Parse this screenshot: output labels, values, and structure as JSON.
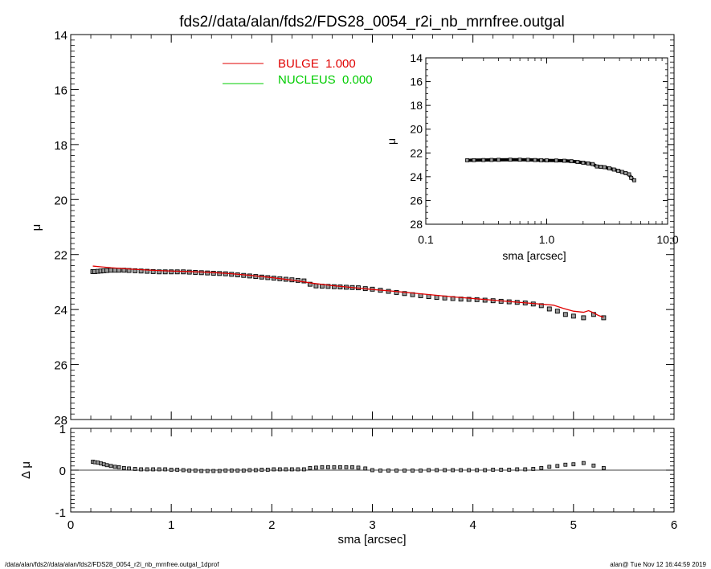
{
  "colors": {
    "bulge": "#e00000",
    "nucleus": "#00cc00",
    "data": "#000000",
    "data_fill": "#9a9a9a"
  },
  "footer": {
    "left": "/data/alan/fds2//data/alan/fds2/FDS28_0054_r2i_nb_mrnfree.outgal_1dprof",
    "right": "alan@  Tue Nov 12 16:44:59 2019"
  },
  "chart_data": [
    {
      "id": "main",
      "type": "scatter",
      "title": "fds2//data/alan/fds2/FDS28_0054_r2i_nb_mrnfree.outgal",
      "xlabel": "",
      "ylabel": "μ",
      "xlim": [
        0,
        6
      ],
      "ylim": [
        28,
        14
      ],
      "y_inverted": true,
      "yticks": [
        "14",
        "16",
        "18",
        "20",
        "22",
        "24",
        "26",
        "28"
      ],
      "legend": [
        {
          "name": "BULGE  1.000",
          "color": "#e00000"
        },
        {
          "name": "NUCLEUS  0.000",
          "color": "#00cc00"
        }
      ],
      "series": [
        {
          "name": "data",
          "marker": "square",
          "x": [
            0.22,
            0.24,
            0.27,
            0.3,
            0.33,
            0.36,
            0.4,
            0.44,
            0.48,
            0.53,
            0.58,
            0.64,
            0.7,
            0.76,
            0.82,
            0.88,
            0.94,
            1.0,
            1.06,
            1.12,
            1.18,
            1.24,
            1.3,
            1.36,
            1.42,
            1.48,
            1.54,
            1.6,
            1.66,
            1.72,
            1.78,
            1.84,
            1.9,
            1.96,
            2.02,
            2.08,
            2.14,
            2.2,
            2.26,
            2.32,
            2.38,
            2.44,
            2.5,
            2.56,
            2.62,
            2.68,
            2.74,
            2.8,
            2.86,
            2.93,
            3.0,
            3.08,
            3.16,
            3.24,
            3.32,
            3.4,
            3.48,
            3.56,
            3.64,
            3.72,
            3.8,
            3.88,
            3.96,
            4.04,
            4.12,
            4.2,
            4.28,
            4.36,
            4.44,
            4.52,
            4.6,
            4.68,
            4.76,
            4.84,
            4.92,
            5.0,
            5.1,
            5.2,
            5.3
          ],
          "y": [
            22.62,
            22.62,
            22.61,
            22.6,
            22.59,
            22.58,
            22.57,
            22.57,
            22.57,
            22.57,
            22.58,
            22.59,
            22.6,
            22.61,
            22.62,
            22.63,
            22.63,
            22.63,
            22.63,
            22.63,
            22.64,
            22.65,
            22.66,
            22.67,
            22.68,
            22.69,
            22.7,
            22.72,
            22.74,
            22.76,
            22.78,
            22.8,
            22.82,
            22.84,
            22.86,
            22.88,
            22.9,
            22.92,
            22.94,
            22.96,
            23.08,
            23.14,
            23.15,
            23.16,
            23.17,
            23.18,
            23.19,
            23.2,
            23.21,
            23.24,
            23.26,
            23.3,
            23.34,
            23.38,
            23.42,
            23.46,
            23.5,
            23.53,
            23.56,
            23.58,
            23.6,
            23.62,
            23.63,
            23.64,
            23.66,
            23.68,
            23.7,
            23.72,
            23.74,
            23.76,
            23.8,
            23.86,
            23.98,
            24.06,
            24.18,
            24.24,
            24.3,
            24.18,
            24.3
          ]
        },
        {
          "name": "BULGE  1.000",
          "marker": "line",
          "x": [
            0.22,
            0.4,
            0.6,
            0.8,
            1.0,
            1.2,
            1.4,
            1.6,
            1.8,
            2.0,
            2.2,
            2.4,
            2.6,
            2.8,
            3.0,
            3.2,
            3.4,
            3.6,
            3.8,
            4.0,
            4.2,
            4.4,
            4.6,
            4.8,
            4.9,
            5.0,
            5.1,
            5.15,
            5.2,
            5.25,
            5.3
          ],
          "y": [
            22.42,
            22.48,
            22.53,
            22.57,
            22.6,
            22.62,
            22.65,
            22.7,
            22.76,
            22.84,
            22.93,
            23.04,
            23.13,
            23.2,
            23.27,
            23.33,
            23.4,
            23.47,
            23.54,
            23.6,
            23.66,
            23.72,
            23.78,
            23.84,
            23.96,
            24.06,
            24.1,
            24.04,
            24.12,
            24.22,
            24.28
          ]
        }
      ]
    },
    {
      "id": "inset",
      "type": "scatter",
      "xlabel": "sma [arcsec]",
      "ylabel": "μ",
      "xscale": "log",
      "xlim": [
        0.1,
        10
      ],
      "ylim": [
        28,
        14
      ],
      "y_inverted": true,
      "xticks": [
        "0.1",
        "1.0",
        "10.0"
      ],
      "yticks": [
        "14",
        "16",
        "18",
        "20",
        "22",
        "24",
        "26",
        "28"
      ],
      "series": [
        {
          "name": "data",
          "marker": "square",
          "x": [
            0.22,
            0.25,
            0.3,
            0.35,
            0.4,
            0.5,
            0.6,
            0.7,
            0.8,
            0.9,
            1.0,
            1.2,
            1.4,
            1.6,
            1.8,
            2.0,
            2.2,
            2.4,
            2.6,
            2.8,
            3.0,
            3.3,
            3.6,
            3.9,
            4.2,
            4.5,
            4.8,
            5.0,
            5.3
          ],
          "y": [
            22.62,
            22.61,
            22.6,
            22.59,
            22.58,
            22.57,
            22.57,
            22.58,
            22.6,
            22.62,
            22.63,
            22.64,
            22.66,
            22.7,
            22.76,
            22.82,
            22.88,
            22.94,
            23.14,
            23.17,
            23.2,
            23.3,
            23.4,
            23.5,
            23.6,
            23.7,
            23.8,
            24.1,
            24.3
          ]
        }
      ]
    },
    {
      "id": "residual",
      "type": "scatter",
      "xlabel": "sma [arcsec]",
      "ylabel": "Δ μ",
      "xlim": [
        0,
        6
      ],
      "ylim": [
        -1,
        1
      ],
      "xticks": [
        "0",
        "1",
        "2",
        "3",
        "4",
        "5",
        "6"
      ],
      "yticks": [
        "-1",
        "0",
        "1"
      ],
      "zero_line": true,
      "series": [
        {
          "name": "residual",
          "marker": "square",
          "x": [
            0.22,
            0.24,
            0.27,
            0.3,
            0.33,
            0.36,
            0.4,
            0.44,
            0.48,
            0.53,
            0.58,
            0.64,
            0.7,
            0.76,
            0.82,
            0.88,
            0.94,
            1.0,
            1.06,
            1.12,
            1.18,
            1.24,
            1.3,
            1.36,
            1.42,
            1.48,
            1.54,
            1.6,
            1.66,
            1.72,
            1.78,
            1.84,
            1.9,
            1.96,
            2.02,
            2.08,
            2.14,
            2.2,
            2.26,
            2.32,
            2.38,
            2.44,
            2.5,
            2.56,
            2.62,
            2.68,
            2.74,
            2.8,
            2.86,
            2.93,
            3.0,
            3.08,
            3.16,
            3.24,
            3.32,
            3.4,
            3.48,
            3.56,
            3.64,
            3.72,
            3.8,
            3.88,
            3.96,
            4.04,
            4.12,
            4.2,
            4.28,
            4.36,
            4.44,
            4.52,
            4.6,
            4.68,
            4.76,
            4.84,
            4.92,
            5.0,
            5.1,
            5.2,
            5.3
          ],
          "y": [
            0.2,
            0.19,
            0.18,
            0.16,
            0.14,
            0.12,
            0.1,
            0.08,
            0.07,
            0.05,
            0.04,
            0.03,
            0.02,
            0.02,
            0.02,
            0.02,
            0.02,
            0.01,
            0.01,
            0.0,
            -0.01,
            -0.01,
            -0.02,
            -0.02,
            -0.02,
            -0.02,
            -0.01,
            -0.01,
            -0.01,
            -0.01,
            0.0,
            0.0,
            0.01,
            0.01,
            0.02,
            0.02,
            0.02,
            0.02,
            0.02,
            0.02,
            0.05,
            0.06,
            0.07,
            0.07,
            0.07,
            0.07,
            0.07,
            0.07,
            0.06,
            0.04,
            0.0,
            -0.01,
            -0.01,
            -0.01,
            -0.01,
            -0.01,
            -0.01,
            0.0,
            0.0,
            0.0,
            0.0,
            0.0,
            0.0,
            0.0,
            0.0,
            0.01,
            0.01,
            0.01,
            0.02,
            0.02,
            0.03,
            0.05,
            0.08,
            0.1,
            0.13,
            0.14,
            0.17,
            0.11,
            0.05
          ]
        }
      ]
    }
  ]
}
